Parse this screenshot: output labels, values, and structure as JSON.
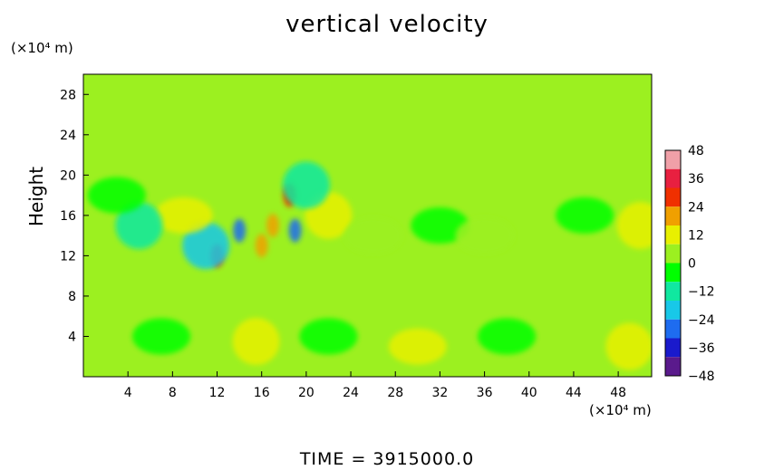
{
  "chart_data": {
    "type": "heatmap",
    "title": "vertical velocity",
    "ylabel": "Height",
    "xlabel": "",
    "x_unit": "(×10⁴ m)",
    "y_unit": "(×10⁴ m)",
    "x_ticks": [
      4,
      8,
      12,
      16,
      20,
      24,
      28,
      32,
      36,
      40,
      44,
      48
    ],
    "y_ticks": [
      4,
      8,
      12,
      16,
      20,
      24,
      28
    ],
    "xlim": [
      0,
      51
    ],
    "ylim": [
      0,
      30
    ],
    "colorbar": {
      "ticks": [
        48,
        36,
        24,
        12,
        0,
        -12,
        -24,
        -36,
        -48
      ],
      "range": [
        -48,
        48
      ],
      "colors": [
        "#5a1a8c",
        "#1a1acc",
        "#1e6cf0",
        "#18c8e8",
        "#10e8a0",
        "#00ff00",
        "#9cf020",
        "#e8f000",
        "#f0a000",
        "#f03000",
        "#e82040",
        "#f0a0a8"
      ]
    },
    "background_value": 0,
    "features": [
      {
        "x": 15.5,
        "y": 3.5,
        "value": 10
      },
      {
        "x": 30,
        "y": 3,
        "value": 9
      },
      {
        "x": 49,
        "y": 3,
        "value": 11
      },
      {
        "x": 7,
        "y": 4,
        "value": -8
      },
      {
        "x": 22,
        "y": 4,
        "value": -7
      },
      {
        "x": 38,
        "y": 4,
        "value": -7
      },
      {
        "x": 14,
        "y": 14.5,
        "value": -30
      },
      {
        "x": 19,
        "y": 14.5,
        "value": -32
      },
      {
        "x": 17,
        "y": 15,
        "value": 22
      },
      {
        "x": 18.5,
        "y": 18,
        "value": 30
      },
      {
        "x": 12,
        "y": 12,
        "value": 28
      },
      {
        "x": 16,
        "y": 13,
        "value": 20
      },
      {
        "x": 11,
        "y": 13,
        "value": -18
      },
      {
        "x": 9,
        "y": 16,
        "value": 8
      },
      {
        "x": 22,
        "y": 16,
        "value": 10
      },
      {
        "x": 5,
        "y": 15,
        "value": -10
      },
      {
        "x": 3,
        "y": 18,
        "value": -8
      },
      {
        "x": 26,
        "y": 14,
        "value": 6
      },
      {
        "x": 32,
        "y": 15,
        "value": -6
      },
      {
        "x": 36,
        "y": 14,
        "value": 6
      },
      {
        "x": 45,
        "y": 16,
        "value": -5
      },
      {
        "x": 50,
        "y": 15,
        "value": 10
      },
      {
        "x": 20,
        "y": 19,
        "value": -10
      }
    ]
  },
  "time_label": "TIME  =  3915000.0"
}
